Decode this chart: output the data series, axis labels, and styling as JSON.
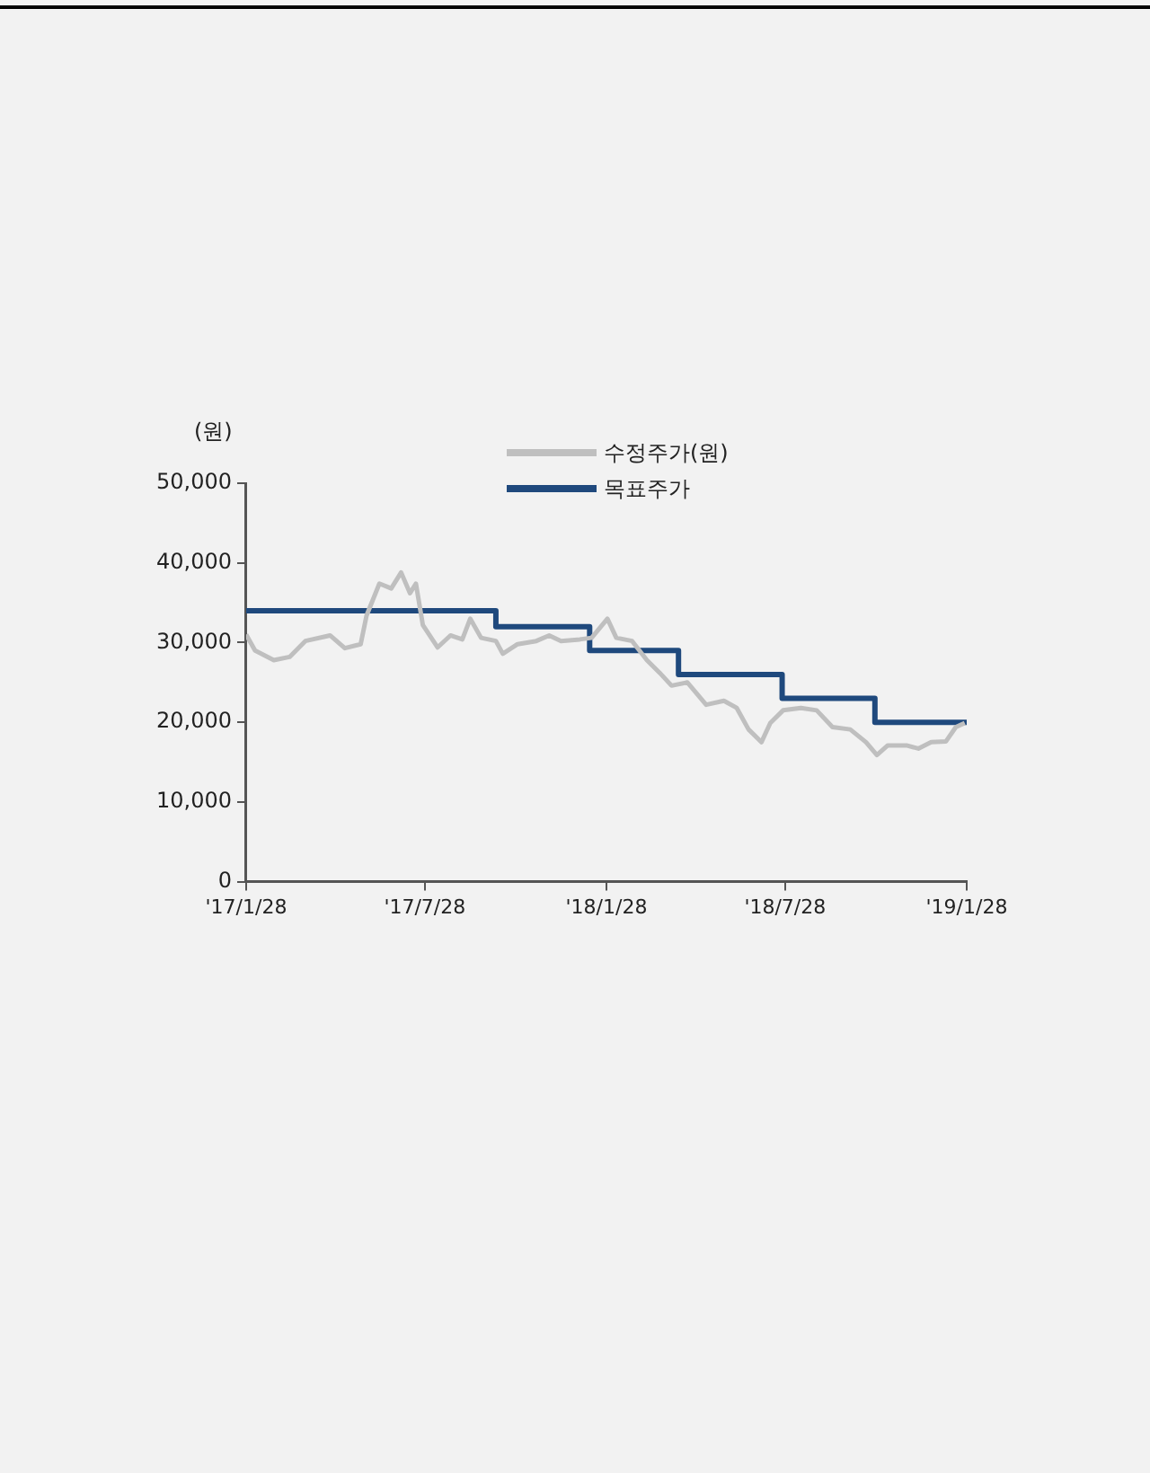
{
  "chart_data": {
    "type": "line",
    "ylabel": "(원)",
    "legend": "top",
    "xlim": [
      "2017-01-28",
      "2019-01-28"
    ],
    "xticks": [
      {
        "value": "2017-01-28",
        "label": "'17/1/28"
      },
      {
        "value": "2017-07-28",
        "label": "'17/7/28"
      },
      {
        "value": "2018-01-28",
        "label": "'18/1/28"
      },
      {
        "value": "2018-07-28",
        "label": "'18/7/28"
      },
      {
        "value": "2019-01-28",
        "label": "'19/1/28"
      }
    ],
    "ylim": [
      0,
      50000
    ],
    "yticks": [
      {
        "value": 0,
        "label": "0"
      },
      {
        "value": 10000,
        "label": "10,000"
      },
      {
        "value": 20000,
        "label": "20,000"
      },
      {
        "value": 30000,
        "label": "30,000"
      },
      {
        "value": 40000,
        "label": "40,000"
      },
      {
        "value": 50000,
        "label": "50,000"
      }
    ],
    "grid": false,
    "marker": "none",
    "series": [
      {
        "name": "수정주가(원)",
        "type": "line",
        "color": "#bfbfbf",
        "x": [
          "2017-01-28",
          "2017-02-06",
          "2017-02-25",
          "2017-03-13",
          "2017-03-29",
          "2017-04-23",
          "2017-05-08",
          "2017-05-24",
          "2017-05-30",
          "2017-06-12",
          "2017-06-24",
          "2017-07-04",
          "2017-07-13",
          "2017-07-19",
          "2017-07-26",
          "2017-08-10",
          "2017-08-23",
          "2017-09-04",
          "2017-09-12",
          "2017-09-23",
          "2017-10-08",
          "2017-10-15",
          "2017-10-30",
          "2017-11-18",
          "2017-12-01",
          "2017-12-13",
          "2018-01-01",
          "2018-01-13",
          "2018-01-29",
          "2018-02-07",
          "2018-02-23",
          "2018-03-10",
          "2018-03-23",
          "2018-04-04",
          "2018-04-20",
          "2018-05-09",
          "2018-05-27",
          "2018-06-09",
          "2018-06-21",
          "2018-07-04",
          "2018-07-13",
          "2018-07-26",
          "2018-08-13",
          "2018-08-29",
          "2018-09-14",
          "2018-10-02",
          "2018-10-18",
          "2018-10-29",
          "2018-11-09",
          "2018-11-28",
          "2018-12-10",
          "2018-12-23",
          "2019-01-07",
          "2019-01-17",
          "2019-01-26"
        ],
        "values": [
          31000,
          29000,
          27800,
          28200,
          30200,
          30900,
          29300,
          29800,
          33400,
          37400,
          36800,
          38800,
          36200,
          37400,
          32200,
          29400,
          30900,
          30400,
          33000,
          30600,
          30200,
          28600,
          29800,
          30200,
          30900,
          30200,
          30400,
          30600,
          33000,
          30600,
          30200,
          27800,
          26200,
          24600,
          25000,
          22200,
          22700,
          21800,
          19100,
          17500,
          19900,
          21500,
          21800,
          21500,
          19400,
          19100,
          17500,
          15900,
          17100,
          17100,
          16700,
          17500,
          17600,
          19400,
          19900
        ]
      },
      {
        "name": "목표주가",
        "type": "step",
        "color": "#1f497d",
        "x": [
          "2017-01-28",
          "2017-10-08",
          "2018-01-11",
          "2018-04-11",
          "2018-07-25",
          "2018-10-27",
          "2019-01-28"
        ],
        "values": [
          34000,
          32000,
          29000,
          26000,
          23000,
          20000,
          20000
        ]
      }
    ]
  }
}
